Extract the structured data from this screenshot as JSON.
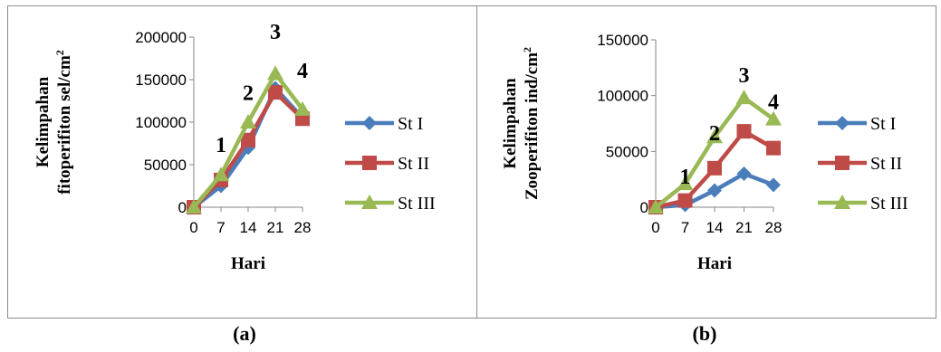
{
  "captions": [
    "(a)",
    "(b)"
  ],
  "chart_data": [
    {
      "type": "line",
      "caption": "(a)",
      "x": [
        0,
        7,
        14,
        21,
        28
      ],
      "ylabel_lines": [
        "Kelimpahan",
        "fitoperifiton sel/cm",
        "2"
      ],
      "xlabel": "Hari",
      "ylim": [
        0,
        200000
      ],
      "yticks": [
        0,
        50000,
        100000,
        150000,
        200000
      ],
      "series": [
        {
          "name": "St I",
          "values": [
            0,
            25000,
            70000,
            140000,
            105000
          ],
          "color": "#4a7ebb",
          "marker": "diamond"
        },
        {
          "name": "St II",
          "values": [
            0,
            32000,
            79000,
            135000,
            104000
          ],
          "color": "#be4b48",
          "marker": "square"
        },
        {
          "name": "St III",
          "values": [
            0,
            38000,
            100000,
            157000,
            115000
          ],
          "color": "#98b954",
          "marker": "triangle"
        }
      ],
      "annotations": [
        {
          "text": "1",
          "x": 7,
          "y": 65000
        },
        {
          "text": "2",
          "x": 14,
          "y": 126000
        },
        {
          "text": "3",
          "x": 21,
          "y": 198000
        },
        {
          "text": "4",
          "x": 28,
          "y": 152000
        }
      ],
      "legend": "right",
      "grid": false
    },
    {
      "type": "line",
      "caption": "(b)",
      "x": [
        0,
        7,
        14,
        21,
        28
      ],
      "ylabel_lines": [
        "Kelimpahan",
        "Zooperifiton  ind/cm",
        "2"
      ],
      "xlabel": "Hari",
      "ylim": [
        0,
        150000
      ],
      "yticks": [
        0,
        50000,
        100000,
        150000
      ],
      "series": [
        {
          "name": "St I",
          "values": [
            0,
            2000,
            15000,
            30000,
            20000
          ],
          "color": "#4a7ebb",
          "marker": "diamond"
        },
        {
          "name": "St II",
          "values": [
            0,
            6000,
            35000,
            68000,
            53000
          ],
          "color": "#be4b48",
          "marker": "square"
        },
        {
          "name": "St III",
          "values": [
            0,
            21000,
            63000,
            98000,
            79000
          ],
          "color": "#98b954",
          "marker": "triangle"
        }
      ],
      "annotations": [
        {
          "text": "1",
          "x": 7,
          "y": 21000
        },
        {
          "text": "2",
          "x": 14,
          "y": 60000
        },
        {
          "text": "3",
          "x": 21,
          "y": 112000
        },
        {
          "text": "4",
          "x": 28,
          "y": 88000
        }
      ],
      "legend": "right",
      "grid": false
    }
  ]
}
